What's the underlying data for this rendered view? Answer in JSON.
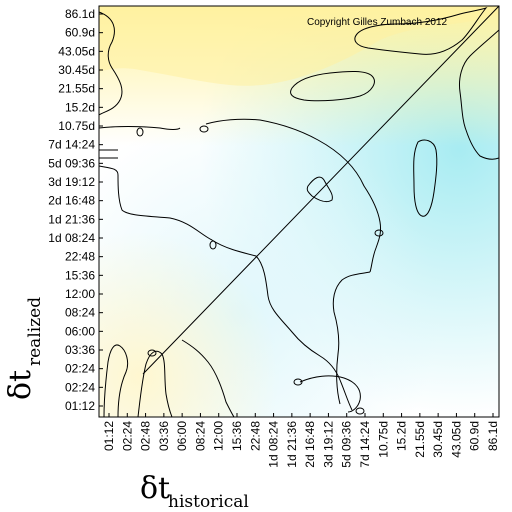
{
  "chart_data": {
    "type": "heatmap",
    "title": "",
    "annotation": "Copyright Gilles Zumbach 2012",
    "xlabel": {
      "symbol": "δt",
      "subscript": "historical"
    },
    "ylabel": {
      "symbol": "δt",
      "subscript": "realized"
    },
    "x_ticks": [
      "01:12",
      "02:24",
      "02:48",
      "03:36",
      "06:00",
      "08:24",
      "12:00",
      "15:36",
      "22:48",
      "1d 08:24",
      "1d 21:36",
      "2d 16:48",
      "3d 19:12",
      "5d 09:36",
      "7d 14:24",
      "10.75d",
      "15.2d",
      "21.55d",
      "30.45d",
      "43.05d",
      "60.9d",
      "86.1d"
    ],
    "y_ticks": [
      "01:12",
      "02:24",
      "02:24",
      "03:36",
      "06:00",
      "08:24",
      "12:00",
      "15:36",
      "22:48",
      "1d 08:24",
      "1d 21:36",
      "2d 16:48",
      "3d 19:12",
      "5d 09:36",
      "7d 14:24",
      "10.75d",
      "15.2d",
      "21.55d",
      "30.45d",
      "43.05d",
      "60.9d",
      "86.1d"
    ],
    "colors": {
      "positive": "#fff3a0",
      "negative": "#a8ecf2",
      "neutral": "#ffffff"
    },
    "diagonal_line": true,
    "grid": false
  }
}
